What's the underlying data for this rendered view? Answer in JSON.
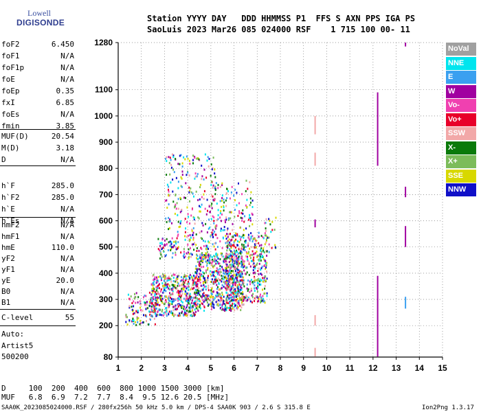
{
  "logo": {
    "line1": "Lowell",
    "line2": "DIGISONDE"
  },
  "header": {
    "line1": "Station YYYY DAY   DDD HHMMSS P1  FFS S AXN PPS IGA PS",
    "line2": "SaoLuis 2023 Mar26 085 024000 RSF    1 715 100 00- 11"
  },
  "params_group1": [
    {
      "label": "foF2",
      "value": "6.450"
    },
    {
      "label": "foF1",
      "value": "N/A"
    },
    {
      "label": "foF1p",
      "value": "N/A"
    },
    {
      "label": "foE",
      "value": "N/A"
    },
    {
      "label": "foEp",
      "value": "0.35"
    },
    {
      "label": "fxI",
      "value": "6.85"
    },
    {
      "label": "foEs",
      "value": "N/A"
    },
    {
      "label": "fmin",
      "value": "3.85"
    }
  ],
  "params_group2": [
    {
      "label": "MUF(D)",
      "value": "20.54"
    },
    {
      "label": "M(D)",
      "value": "3.18"
    },
    {
      "label": "D",
      "value": "N/A"
    }
  ],
  "params_group3": [
    {
      "label": "h`F",
      "value": "285.0"
    },
    {
      "label": "h`F2",
      "value": "285.0"
    },
    {
      "label": "h`E",
      "value": "N/A"
    },
    {
      "label": "h`Es",
      "value": "N/A"
    }
  ],
  "params_group4": [
    {
      "label": "hmF2",
      "value": "N/A"
    },
    {
      "label": "hmF1",
      "value": "N/A"
    },
    {
      "label": "hmE",
      "value": "110.0"
    },
    {
      "label": "yF2",
      "value": "N/A"
    },
    {
      "label": "yF1",
      "value": "N/A"
    },
    {
      "label": "yE",
      "value": "20.0"
    },
    {
      "label": "B0",
      "value": "N/A"
    },
    {
      "label": "B1",
      "value": "N/A"
    }
  ],
  "clevel": {
    "label": "C-level",
    "value": "55"
  },
  "auto": {
    "line1": "Auto:",
    "line2": "Artist5",
    "line3": "500200"
  },
  "muf_table": {
    "d_line": "D     100  200  400  600  800 1000 1500 3000 [km]",
    "muf_line": "MUF   6.8  6.9  7.2  7.7  8.4  9.5 12.6 20.5 [MHz]"
  },
  "footer": {
    "left": "SAA0K_2023085024000.RSF / 280fx256h 50 kHz 5.0 km / DPS-4 SAA0K 903 / 2.6 S 315.8 E",
    "right": "Ion2Png 1.3.17"
  },
  "legend": [
    {
      "label": "NoVal",
      "color": "#a0a0a0"
    },
    {
      "label": "NNE",
      "color": "#00e5ee"
    },
    {
      "label": "E",
      "color": "#3aa0f0"
    },
    {
      "label": "W",
      "color": "#a000a0"
    },
    {
      "label": "Vo-",
      "color": "#f040b0"
    },
    {
      "label": "Vo+",
      "color": "#e8002a"
    },
    {
      "label": "SSW",
      "color": "#f2a8a8"
    },
    {
      "label": "X-",
      "color": "#0a7a0a"
    },
    {
      "label": "X+",
      "color": "#7cbc5a"
    },
    {
      "label": "SSE",
      "color": "#d8d800"
    },
    {
      "label": "NNW",
      "color": "#1010c8"
    }
  ],
  "chart_data": {
    "type": "scatter",
    "xlim": [
      1,
      15
    ],
    "ylim": [
      80,
      1280
    ],
    "x_ticks": [
      "1",
      "2",
      "3",
      "4",
      "5",
      "6",
      "7",
      "8",
      "9",
      "10",
      "11",
      "12",
      "13",
      "14",
      "15"
    ],
    "y_ticks": [
      "80",
      "200",
      "300",
      "400",
      "500",
      "600",
      "700",
      "800",
      "900",
      "1000",
      "1100",
      "1280"
    ],
    "clusters": [
      {
        "x": [
          1.3,
          2.6
        ],
        "y": [
          205,
          330
        ],
        "n": 120
      },
      {
        "x": [
          2.4,
          4.4
        ],
        "y": [
          240,
          400
        ],
        "n": 500
      },
      {
        "x": [
          4.3,
          6.4
        ],
        "y": [
          260,
          480
        ],
        "n": 650
      },
      {
        "x": [
          5.6,
          7.4
        ],
        "y": [
          290,
          560
        ],
        "n": 450
      },
      {
        "x": [
          2.7,
          4.9
        ],
        "y": [
          460,
          540
        ],
        "n": 120
      },
      {
        "x": [
          3.0,
          5.2
        ],
        "y": [
          540,
          860
        ],
        "n": 220
      },
      {
        "x": [
          5.0,
          6.8
        ],
        "y": [
          480,
          760
        ],
        "n": 160
      },
      {
        "x": [
          7.3,
          7.8
        ],
        "y": [
          480,
          620
        ],
        "n": 25
      }
    ],
    "vertical_traces": [
      {
        "x": 9.5,
        "y": [
          930,
          1000
        ],
        "series": "SSW"
      },
      {
        "x": 9.5,
        "y": [
          810,
          860
        ],
        "series": "SSW"
      },
      {
        "x": 9.5,
        "y": [
          575,
          605
        ],
        "series": "W"
      },
      {
        "x": 9.5,
        "y": [
          200,
          240
        ],
        "series": "SSW"
      },
      {
        "x": 9.5,
        "y": [
          82,
          115
        ],
        "series": "SSW"
      },
      {
        "x": 12.2,
        "y": [
          810,
          1090
        ],
        "series": "W"
      },
      {
        "x": 12.2,
        "y": [
          82,
          390
        ],
        "series": "W"
      },
      {
        "x": 13.4,
        "y": [
          690,
          730
        ],
        "series": "W"
      },
      {
        "x": 13.4,
        "y": [
          500,
          580
        ],
        "series": "W"
      },
      {
        "x": 13.4,
        "y": [
          265,
          310
        ],
        "series": "E"
      },
      {
        "x": 13.4,
        "y": [
          1265,
          1280
        ],
        "series": "W"
      }
    ]
  }
}
